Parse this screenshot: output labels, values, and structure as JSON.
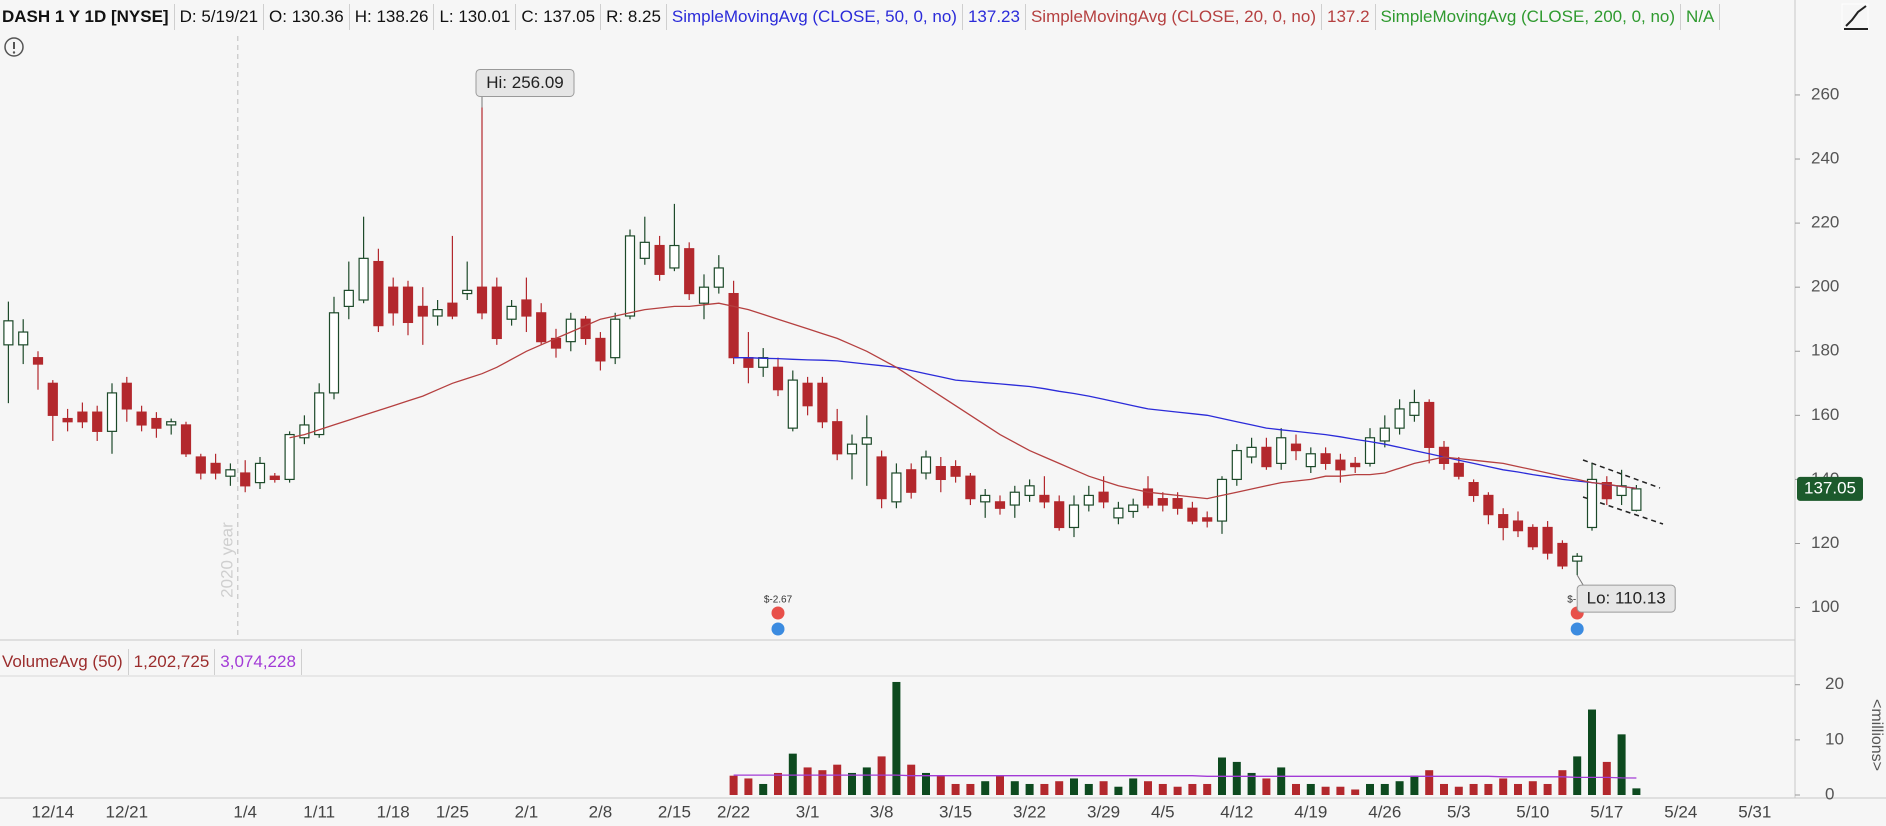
{
  "header": {
    "symbol": "DASH 1 Y 1D [NYSE]",
    "items": [
      "D: 5/19/21",
      "O: 130.36",
      "H: 138.26",
      "L: 130.01",
      "C: 137.05",
      "R: 8.25"
    ]
  },
  "chart_data": [
    {
      "type": "candlestick",
      "categories": [
        null,
        null,
        null,
        "12/14",
        null,
        null,
        null,
        null,
        "12/21",
        null,
        null,
        null,
        null,
        null,
        null,
        null,
        "1/4",
        null,
        null,
        null,
        null,
        "1/11",
        null,
        null,
        null,
        null,
        "1/18",
        null,
        null,
        null,
        "1/25",
        null,
        null,
        null,
        null,
        "2/1",
        null,
        null,
        null,
        null,
        "2/8",
        null,
        null,
        null,
        null,
        "2/15",
        null,
        null,
        null,
        "2/22",
        null,
        null,
        null,
        null,
        "3/1",
        null,
        null,
        null,
        null,
        "3/8",
        null,
        null,
        null,
        null,
        "3/15",
        null,
        null,
        null,
        null,
        "3/22",
        null,
        null,
        null,
        null,
        "3/29",
        null,
        null,
        null,
        "4/5",
        null,
        null,
        null,
        null,
        "4/12",
        null,
        null,
        null,
        null,
        "4/19",
        null,
        null,
        null,
        null,
        "4/26",
        null,
        null,
        null,
        null,
        "5/3",
        null,
        null,
        null,
        null,
        "5/10",
        null,
        null,
        null,
        null,
        "5/17",
        null,
        null,
        null,
        null,
        "5/24",
        null,
        null,
        null,
        null,
        "5/31",
        null,
        null
      ],
      "open": [
        182,
        182,
        178,
        170,
        159,
        161,
        161,
        155,
        170,
        161,
        159,
        157,
        157,
        147,
        145,
        141,
        142,
        139,
        141,
        140,
        153,
        154,
        167,
        194,
        196,
        208,
        200,
        200,
        194,
        191,
        195,
        198,
        200,
        200,
        190,
        196,
        192,
        184,
        183,
        190,
        184,
        178,
        191,
        209,
        213,
        206,
        212,
        195,
        200,
        198,
        178,
        175,
        175,
        156,
        170,
        170,
        158,
        148,
        151,
        147,
        133,
        143,
        142,
        144,
        144,
        141,
        133,
        133,
        132,
        135,
        135,
        133,
        125,
        132,
        136,
        128,
        130,
        137,
        134,
        134,
        131,
        128,
        127,
        140,
        147,
        150,
        145,
        151,
        144,
        148,
        146,
        145,
        145,
        152,
        156,
        160,
        164,
        150,
        145,
        139,
        135,
        129,
        127,
        125,
        125,
        120,
        114.5,
        125,
        139,
        135,
        130.36,
        null,
        null,
        null,
        null,
        null,
        null,
        null,
        null,
        null,
        null
      ],
      "high": [
        195.5,
        190,
        180,
        171,
        162,
        164,
        163,
        170,
        172,
        163,
        161,
        159,
        158,
        148,
        148,
        145,
        146,
        147,
        142,
        155,
        160,
        170,
        197,
        208,
        222,
        212,
        203,
        202,
        200,
        196,
        216,
        208,
        256.09,
        203,
        196,
        203,
        195,
        187,
        192,
        191,
        186,
        192,
        218,
        222,
        216,
        226,
        214,
        204,
        210,
        202,
        186,
        181,
        178,
        174,
        172,
        172,
        162,
        154,
        160,
        149,
        145,
        145,
        149,
        147,
        146,
        142,
        137,
        135,
        138,
        140,
        141,
        135,
        135,
        138,
        141,
        133,
        134,
        141,
        136,
        136,
        133,
        130,
        141,
        151,
        153,
        153,
        156,
        154,
        150,
        150,
        148,
        147,
        156,
        160,
        165,
        168,
        165,
        152,
        147,
        140,
        136,
        131,
        130,
        126,
        127,
        121,
        117,
        145,
        141,
        143,
        138.26,
        null,
        null,
        null,
        null,
        null,
        null,
        null,
        null,
        null,
        null
      ],
      "low": [
        163.8,
        176,
        168,
        152,
        155,
        156,
        152,
        148,
        158,
        155,
        153,
        154,
        147,
        140,
        140,
        138,
        136,
        137,
        139,
        139,
        151,
        153,
        165,
        190,
        195,
        186,
        188,
        185,
        182,
        188,
        190,
        196,
        190,
        182,
        188,
        186,
        182,
        178,
        180,
        182,
        174,
        176,
        190,
        207,
        202,
        205,
        196,
        190,
        198,
        176,
        170,
        172,
        166,
        155,
        160,
        156,
        146,
        140,
        138,
        131,
        131,
        134,
        140,
        136,
        139,
        132,
        128,
        129,
        128,
        133,
        131,
        124,
        122,
        130,
        131,
        126,
        128,
        131,
        130,
        129,
        126,
        125,
        123,
        138,
        145,
        143,
        143,
        146,
        142,
        143,
        139,
        142,
        144,
        150,
        154,
        158,
        145,
        143,
        140,
        133,
        126,
        121,
        122,
        118,
        115,
        112,
        110.13,
        124,
        132,
        132,
        130.01,
        null,
        null,
        null,
        null,
        null,
        null,
        null,
        null,
        null,
        null
      ],
      "close": [
        189.5,
        186,
        176,
        160,
        158,
        158,
        155,
        167,
        162,
        157,
        156,
        158,
        148,
        142,
        142,
        143,
        138,
        145,
        140,
        154,
        157,
        167,
        192,
        199,
        209,
        188,
        192,
        189,
        191,
        193,
        191,
        199,
        192,
        184,
        194,
        191,
        183,
        181,
        190,
        184,
        177,
        190,
        216,
        214,
        204,
        213,
        198,
        200,
        206,
        178,
        175,
        178,
        168,
        171,
        163,
        158,
        148,
        151,
        153,
        134,
        142,
        136,
        147,
        140,
        141,
        134,
        135,
        131,
        136,
        138,
        133,
        125,
        132,
        135,
        133,
        131,
        132,
        132,
        132,
        131,
        127,
        127,
        140,
        149,
        150,
        144,
        153,
        149,
        148,
        145,
        143,
        144,
        153,
        156,
        162,
        164,
        150,
        145,
        141,
        135,
        129,
        125,
        124,
        119,
        117,
        113,
        116,
        140,
        134,
        138,
        137.05,
        null,
        null,
        null,
        null,
        null,
        null,
        null,
        null,
        null,
        null
      ],
      "up_color": "#1d4a2a",
      "down_color": "#b3282d",
      "studies": [
        {
          "name": "SimpleMovingAvg (CLOSE, 50, 0, no)",
          "color": "#2b2bd9",
          "values": [
            null,
            null,
            null,
            null,
            null,
            null,
            null,
            null,
            null,
            null,
            null,
            null,
            null,
            null,
            null,
            null,
            null,
            null,
            null,
            null,
            null,
            null,
            null,
            null,
            null,
            null,
            null,
            null,
            null,
            null,
            null,
            null,
            null,
            null,
            null,
            null,
            null,
            null,
            null,
            null,
            null,
            null,
            null,
            null,
            null,
            null,
            null,
            null,
            null,
            178,
            178,
            177.8,
            177.7,
            177.5,
            177.3,
            177.2,
            177,
            176.5,
            176,
            175.5,
            175,
            174,
            173,
            172,
            171,
            170.6,
            170.2,
            169.8,
            169.4,
            169,
            168.3,
            167.5,
            166.8,
            166,
            165,
            164,
            163,
            162,
            161.5,
            161,
            160.5,
            160,
            159,
            158,
            157,
            156,
            155.5,
            155,
            154.5,
            154,
            153.3,
            152.5,
            151.8,
            151,
            150,
            149,
            148,
            147,
            146,
            145,
            144,
            143,
            142.3,
            141.5,
            140.8,
            140,
            139.5,
            139,
            138.4,
            137.8,
            137.23,
            null,
            null,
            null,
            null,
            null,
            null,
            null,
            null,
            null,
            null
          ]
        },
        {
          "name": "SimpleMovingAvg (CLOSE, 20, 0, no)",
          "color": "#b54040",
          "values": [
            null,
            null,
            null,
            null,
            null,
            null,
            null,
            null,
            null,
            null,
            null,
            null,
            null,
            null,
            null,
            null,
            null,
            null,
            null,
            153,
            154,
            155.5,
            157,
            158.5,
            160,
            161.5,
            163,
            164.5,
            166,
            168,
            170,
            171.5,
            173,
            175,
            177.5,
            180,
            182,
            184,
            186,
            188,
            190,
            191,
            192,
            193,
            193.5,
            194,
            194,
            194.5,
            195,
            194,
            193,
            191.5,
            190,
            188.5,
            187,
            185.5,
            184,
            182,
            180,
            177.5,
            175,
            172,
            169,
            166,
            163,
            160,
            157,
            154,
            151.5,
            149,
            147,
            145,
            143,
            141,
            139.5,
            138,
            137,
            136,
            135.5,
            135,
            134.5,
            134,
            135,
            136,
            137,
            138,
            139,
            139.5,
            140,
            141,
            141,
            141.5,
            141.5,
            142,
            143.5,
            145,
            146,
            147,
            146.5,
            146,
            145.5,
            145,
            144,
            143,
            142,
            141,
            140,
            139,
            138.5,
            137.8,
            137.2,
            null,
            null,
            null,
            null,
            null,
            null,
            null,
            null,
            null,
            null
          ]
        }
      ],
      "extra_studies": [
        {
          "name": "SimpleMovingAvg (CLOSE, 200, 0, no)",
          "color": "#2f9a2f",
          "label": "N/A"
        }
      ],
      "ylim": [
        90.5,
        278.4
      ],
      "yticks": [
        100,
        120,
        140,
        160,
        180,
        200,
        220,
        240,
        260
      ],
      "grid": false,
      "annotations": {
        "high": "Hi: 256.09",
        "low": "Lo: 110.13",
        "year": "2020 year",
        "earnings": [
          "$-2.67",
          "$-"
        ]
      }
    },
    {
      "type": "bar",
      "title": "VolumeAvg (50)",
      "color": "#9b2d2d",
      "values": [
        null,
        null,
        null,
        null,
        null,
        null,
        null,
        null,
        null,
        null,
        null,
        null,
        null,
        null,
        null,
        null,
        null,
        null,
        null,
        null,
        null,
        null,
        null,
        null,
        null,
        null,
        null,
        null,
        null,
        null,
        null,
        null,
        null,
        null,
        null,
        null,
        null,
        null,
        null,
        null,
        null,
        null,
        null,
        null,
        null,
        null,
        null,
        null,
        null,
        3.5,
        3,
        2,
        4,
        7.5,
        5,
        4.5,
        5.5,
        4,
        5,
        7,
        20.5,
        5.5,
        4,
        3.5,
        2,
        2,
        2.5,
        3.5,
        2.5,
        2,
        2,
        2.5,
        3,
        2,
        2.5,
        1.5,
        3,
        2.5,
        2,
        1.5,
        2,
        2,
        6.8,
        6,
        4,
        3,
        5,
        2,
        2,
        1.5,
        1.5,
        1,
        2,
        2,
        2.5,
        3.5,
        4.5,
        2,
        1.5,
        2,
        2,
        3,
        2,
        2.5,
        2,
        4.5,
        7,
        15.5,
        6,
        11,
        1.202725,
        null,
        null,
        null,
        null,
        null,
        null,
        null,
        null,
        null,
        null
      ],
      "value_label": "1,202,725",
      "up_color": "#0d4a1f",
      "down_color": "#b3282d",
      "avg": {
        "color": "#a23ad6",
        "label": "3,074,228",
        "values": [
          null,
          null,
          null,
          null,
          null,
          null,
          null,
          null,
          null,
          null,
          null,
          null,
          null,
          null,
          null,
          null,
          null,
          null,
          null,
          null,
          null,
          null,
          null,
          null,
          null,
          null,
          null,
          null,
          null,
          null,
          null,
          null,
          null,
          null,
          null,
          null,
          null,
          null,
          null,
          null,
          null,
          null,
          null,
          null,
          null,
          null,
          null,
          null,
          null,
          3.6,
          3.6,
          3.6,
          3.6,
          3.6,
          3.6,
          3.6,
          3.6,
          3.6,
          3.6,
          3.6,
          3.6,
          3.5,
          3.5,
          3.5,
          3.5,
          3.5,
          3.5,
          3.5,
          3.5,
          3.5,
          3.5,
          3.5,
          3.5,
          3.5,
          3.5,
          3.5,
          3.5,
          3.5,
          3.5,
          3.5,
          3.5,
          3.4,
          3.4,
          3.4,
          3.4,
          3.4,
          3.4,
          3.4,
          3.4,
          3.4,
          3.4,
          3.4,
          3.4,
          3.4,
          3.4,
          3.4,
          3.4,
          3.4,
          3.4,
          3.4,
          3.4,
          3.3,
          3.3,
          3.3,
          3.3,
          3.3,
          3.2,
          3.2,
          3.2,
          3.1,
          3.074228,
          null,
          null,
          null,
          null,
          null,
          null,
          null,
          null,
          null,
          null
        ]
      },
      "ylim": [
        0,
        21.4
      ],
      "yticks": [
        0,
        10,
        20
      ],
      "axis_label": "<millions>"
    }
  ]
}
